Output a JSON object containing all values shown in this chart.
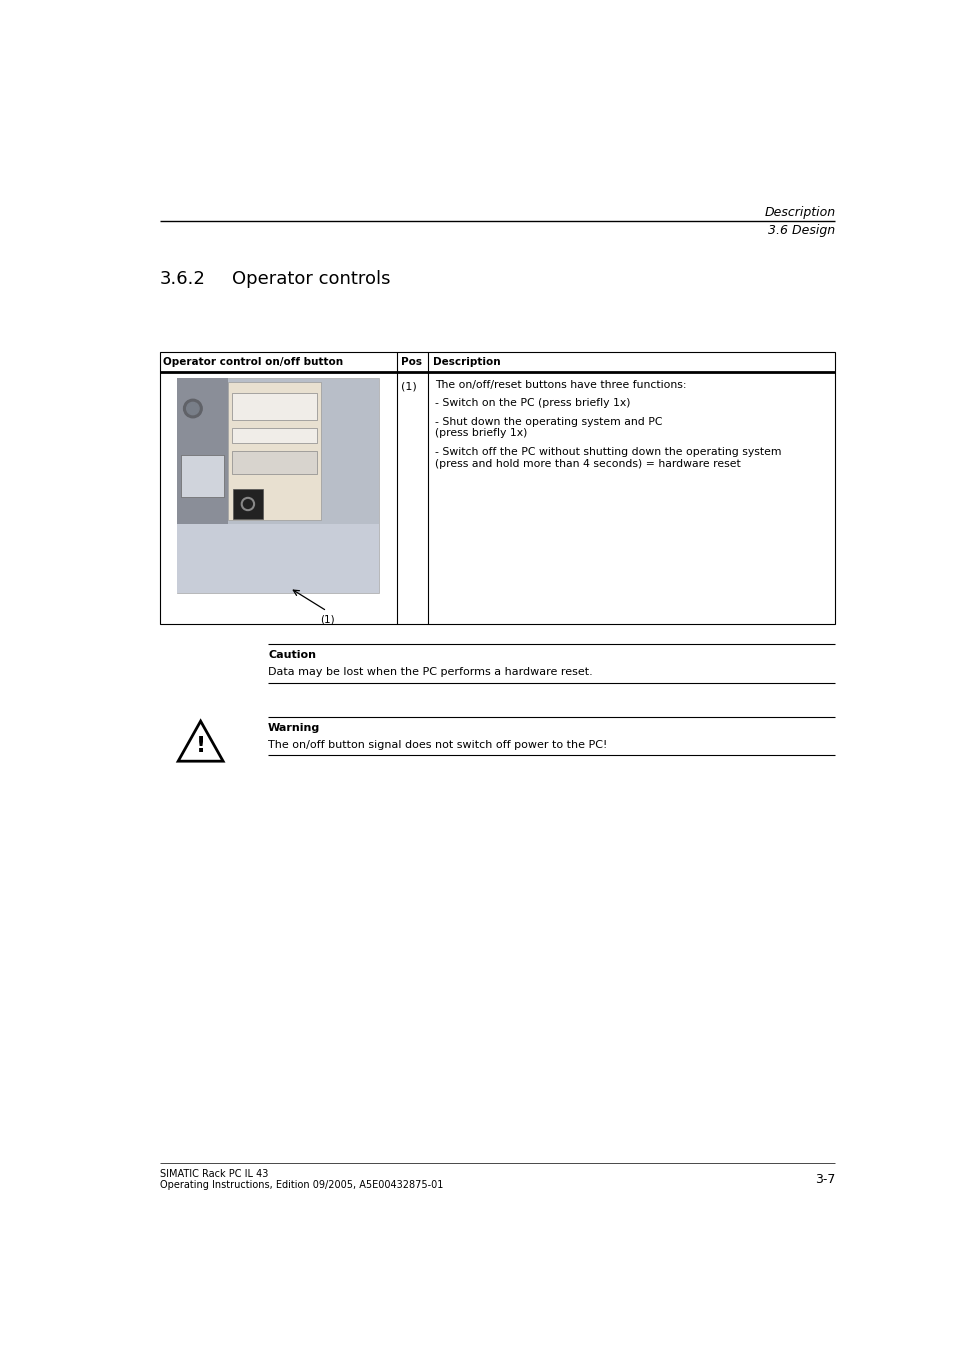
{
  "bg_color": "#ffffff",
  "header_line1": "Description",
  "header_line2": "3.6 Design",
  "section_title": "3.6.2",
  "section_title2": "Operator controls",
  "table": {
    "col1_header": "Operator control on/off button",
    "col2_header": "Pos",
    "col3_header": "Description",
    "pos_label": "(1)",
    "desc_line1": "The on/off/reset buttons have three functions:",
    "desc_line2": "- Switch on the PC (press briefly 1x)",
    "desc_line3": "- Shut down the operating system and PC",
    "desc_line3b": "(press briefly 1x)",
    "desc_line4": "- Switch off the PC without shutting down the operating system",
    "desc_line4b": "(press and hold more than 4 seconds) = hardware reset",
    "image_label": "(1)"
  },
  "caution_box": {
    "title": "Caution",
    "text": "Data may be lost when the PC performs a hardware reset."
  },
  "warning_box": {
    "title": "Warning",
    "text": "The on/off button signal does not switch off power to the PC!"
  },
  "footer_left1": "SIMATIC Rack PC IL 43",
  "footer_left2": "Operating Instructions, Edition 09/2005, A5E00432875-01",
  "footer_right": "3-7"
}
